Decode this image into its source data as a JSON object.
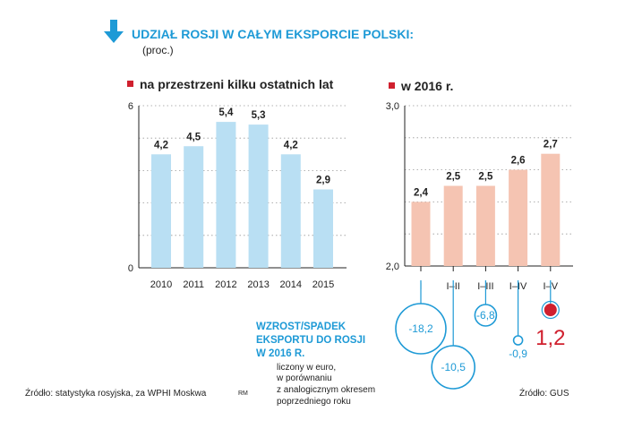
{
  "header": {
    "title": "UDZIAŁ ROSJI W CAŁYM EKSPORCIE POLSKI:",
    "subtitle": "(proc.)"
  },
  "colors": {
    "accent": "#1e9ad6",
    "left_bar": "#b9dff3",
    "right_bar": "#f5c4b2",
    "marker": "#d0202e"
  },
  "chart_data": [
    {
      "type": "bar",
      "title": "na przestrzeni kilku ostatnich lat",
      "categories": [
        "2010",
        "2011",
        "2012",
        "2013",
        "2014",
        "2015"
      ],
      "values": [
        4.2,
        4.5,
        5.4,
        5.3,
        4.2,
        2.9
      ],
      "value_labels": [
        "4,2",
        "4,5",
        "5,4",
        "5,3",
        "4,2",
        "2,9"
      ],
      "ylim": [
        0,
        6
      ],
      "yticks": [
        "0",
        "6"
      ],
      "grid": true
    },
    {
      "type": "bar",
      "title": "w 2016 r.",
      "categories": [
        "I",
        "I–II",
        "I–III",
        "I–IV",
        "I–V"
      ],
      "values": [
        2.4,
        2.5,
        2.5,
        2.6,
        2.7
      ],
      "value_labels": [
        "2,4",
        "2,5",
        "2,5",
        "2,6",
        "2,7"
      ],
      "ylim": [
        2.0,
        3.0
      ],
      "yticks": [
        "2,0",
        "3,0"
      ],
      "grid": true
    },
    {
      "type": "scatter",
      "title": "WZROST/SPADEK EKSPORTU DO ROSJI W 2016 R.",
      "categories": [
        "I",
        "I–II",
        "I–III",
        "I–IV",
        "I–V"
      ],
      "values": [
        -18.2,
        -10.5,
        -6.8,
        -0.9,
        1.2
      ],
      "value_labels": [
        "-18,2",
        "-10,5",
        "-6,8",
        "-0,9",
        "1,2"
      ],
      "note": [
        "liczony w euro,",
        "w porównaniu",
        "z analogicznym okresem",
        "poprzedniego roku"
      ]
    }
  ],
  "footer": {
    "source_left": "Źródło: statystyka rosyjska, za WPHI Moskwa",
    "rm": "RM",
    "source_right": "Źródło: GUS"
  }
}
